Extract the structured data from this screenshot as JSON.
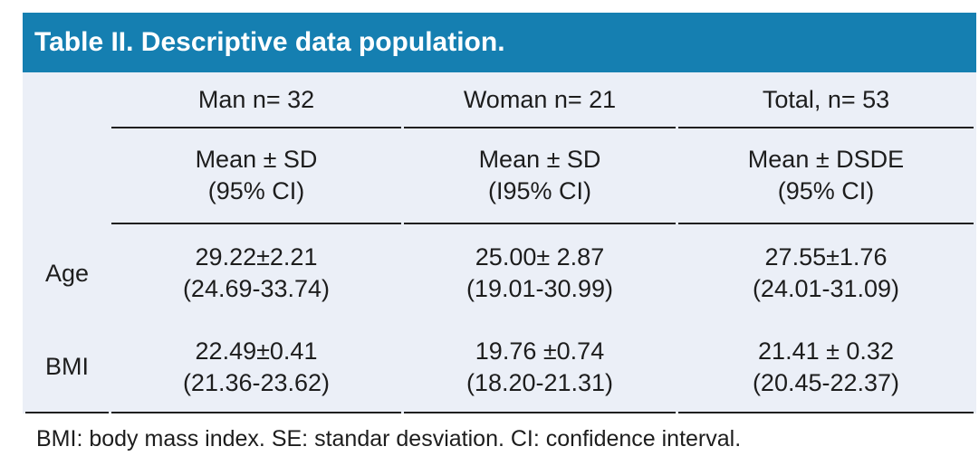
{
  "title": "Table II. Descriptive data population.",
  "colors": {
    "header_bg": "#157fb1",
    "header_text": "#ffffff",
    "table_bg": "#ebeff7",
    "rule": "#1f1f1f",
    "text": "#1d1d1d"
  },
  "table": {
    "group_headers": [
      "Man n= 32",
      "Woman n= 21",
      "Total, n= 53"
    ],
    "sub_headers": [
      {
        "line1": "Mean ± SD",
        "line2": "(95% CI)"
      },
      {
        "line1": "Mean ± SD",
        "line2": "(I95% CI)"
      },
      {
        "line1": "Mean ± DSDE",
        "line2": "(95% CI)"
      }
    ],
    "rows": [
      {
        "label": "Age",
        "cells": [
          {
            "line1": "29.22±2.21",
            "line2": "(24.69-33.74)"
          },
          {
            "line1": "25.00± 2.87",
            "line2": "(19.01-30.99)"
          },
          {
            "line1": "27.55±1.76",
            "line2": "(24.01-31.09)"
          }
        ]
      },
      {
        "label": "BMI",
        "cells": [
          {
            "line1": "22.49±0.41",
            "line2": "(21.36-23.62)"
          },
          {
            "line1": "19.76 ±0.74",
            "line2": "(18.20-21.31)"
          },
          {
            "line1": "21.41 ± 0.32",
            "line2": "(20.45-22.37)"
          }
        ]
      }
    ]
  },
  "footnote": "BMI: body mass index. SE: standar desviation. CI: confidence interval."
}
